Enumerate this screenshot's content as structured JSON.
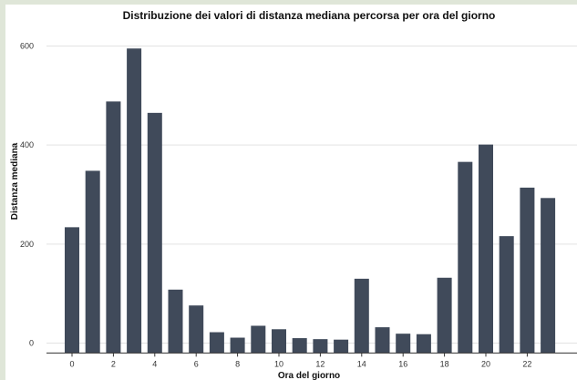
{
  "chart_data": {
    "type": "bar",
    "title": "Distribuzione dei valori di distanza mediana percorsa per ora del giorno",
    "xlabel": "Ora del giorno",
    "ylabel": "Distanza mediana",
    "categories": [
      0,
      1,
      2,
      3,
      4,
      5,
      6,
      7,
      8,
      9,
      10,
      11,
      12,
      13,
      14,
      15,
      16,
      17,
      18,
      19,
      20,
      21,
      22,
      23
    ],
    "values": [
      234,
      348,
      488,
      595,
      465,
      108,
      76,
      22,
      11,
      35,
      28,
      10,
      8,
      7,
      130,
      32,
      19,
      18,
      132,
      366,
      401,
      216,
      314,
      293
    ],
    "xticks": [
      0,
      2,
      4,
      6,
      8,
      10,
      12,
      14,
      16,
      18,
      20,
      22
    ],
    "yticks": [
      0,
      200,
      400,
      600
    ],
    "ylim": [
      -20,
      640
    ],
    "grid": true,
    "bar_color": "#404a5a"
  }
}
